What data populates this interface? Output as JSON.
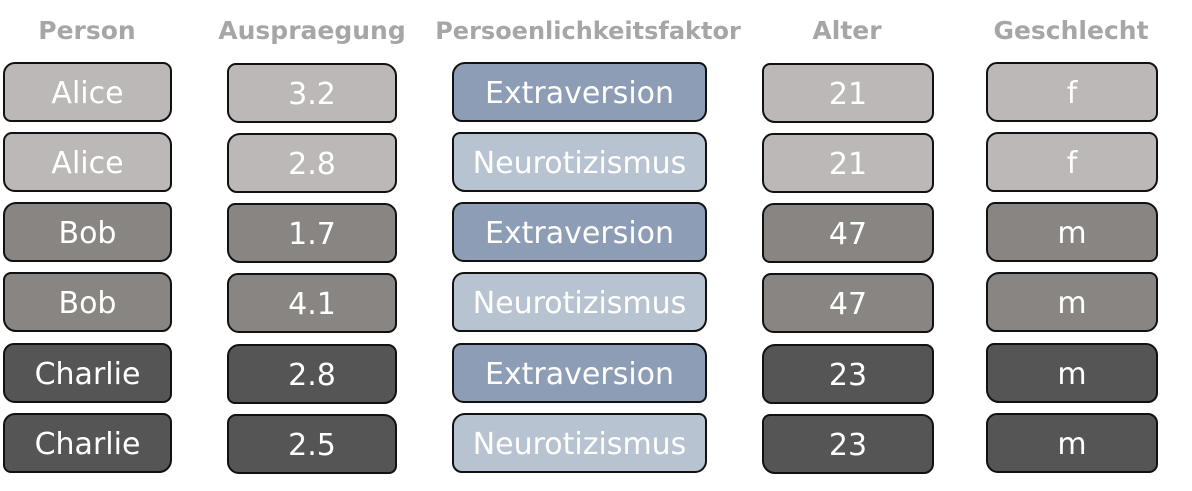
{
  "headers": {
    "person": "Person",
    "auspraegung": "Auspraegung",
    "faktor": "Persoenlichkeitsfaktor",
    "alter": "Alter",
    "geschlecht": "Geschlecht"
  },
  "colors": {
    "header_text": "#a6a6a6",
    "cell_text": "#ffffff",
    "border": "#111111",
    "person_alice": "#bcb8b7",
    "person_bob": "#898583",
    "person_charlie": "#565555",
    "extraversion": "#8d9db5",
    "neurotizismus": "#b7c3d1"
  },
  "rows": [
    {
      "person": "Alice",
      "auspraegung": "3.2",
      "faktor": "Extraversion",
      "alter": "21",
      "geschlecht": "f"
    },
    {
      "person": "Alice",
      "auspraegung": "2.8",
      "faktor": "Neurotizismus",
      "alter": "21",
      "geschlecht": "f"
    },
    {
      "person": "Bob",
      "auspraegung": "1.7",
      "faktor": "Extraversion",
      "alter": "47",
      "geschlecht": "m"
    },
    {
      "person": "Bob",
      "auspraegung": "4.1",
      "faktor": "Neurotizismus",
      "alter": "47",
      "geschlecht": "m"
    },
    {
      "person": "Charlie",
      "auspraegung": "2.8",
      "faktor": "Extraversion",
      "alter": "23",
      "geschlecht": "m"
    },
    {
      "person": "Charlie",
      "auspraegung": "2.5",
      "faktor": "Neurotizismus",
      "alter": "23",
      "geschlecht": "m"
    }
  ]
}
